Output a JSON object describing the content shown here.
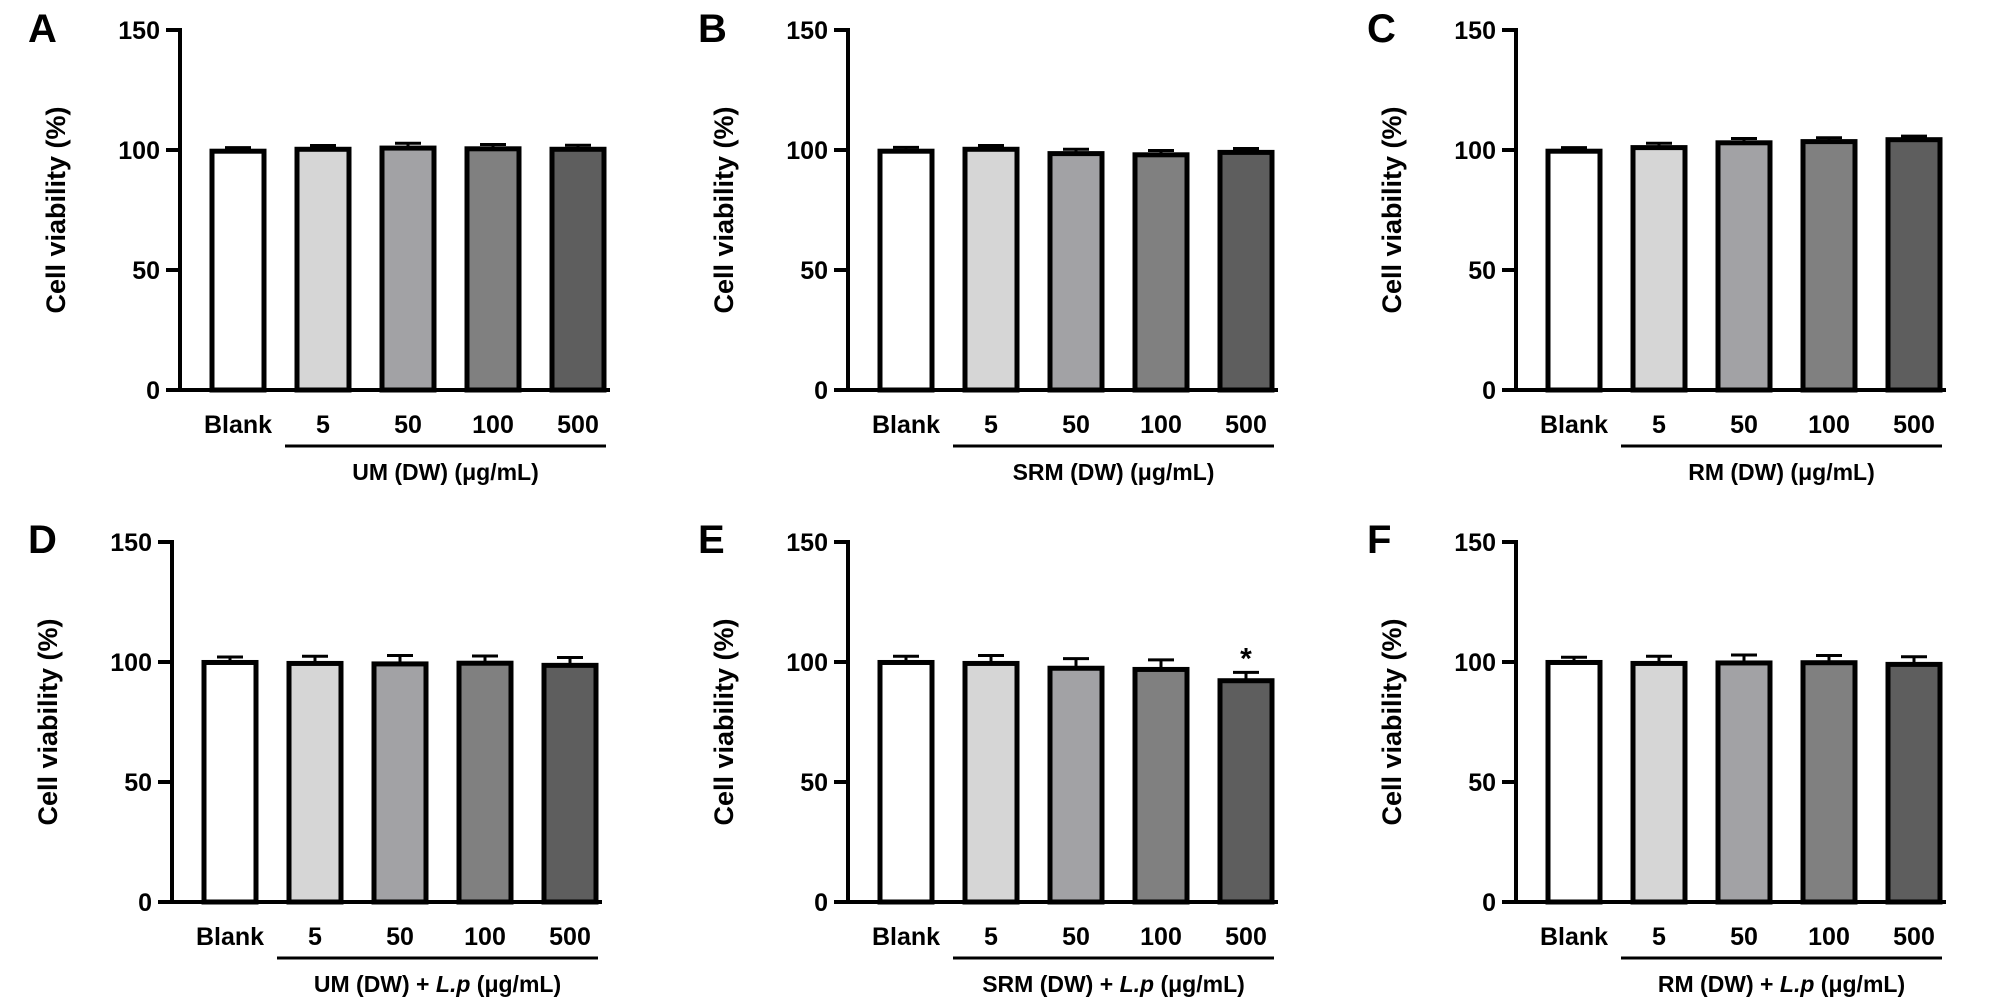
{
  "colors": {
    "axis": "#000000",
    "bar_fills": [
      "#ffffff",
      "#d6d6d6",
      "#a2a2a5",
      "#808080",
      "#5e5e5e"
    ]
  },
  "chart_data": [
    {
      "panel": "A",
      "type": "bar",
      "ylabel": "Cell viability (%)",
      "ylim": [
        0,
        150
      ],
      "yticks": [
        "0",
        "50",
        "100",
        "150"
      ],
      "categories": [
        "Blank",
        "5",
        "50",
        "100",
        "500"
      ],
      "values": [
        99.5,
        100.3,
        100.8,
        100.5,
        100.3
      ],
      "errors": [
        1.5,
        1.6,
        2.0,
        1.8,
        1.7
      ],
      "group_label": {
        "prefix": "UM (DW)",
        "italic": "",
        "suffix": " (μg/mL)"
      },
      "significance": [
        "",
        "",
        "",
        "",
        ""
      ]
    },
    {
      "panel": "B",
      "type": "bar",
      "ylabel": "Cell viability (%)",
      "ylim": [
        0,
        150
      ],
      "yticks": [
        "0",
        "50",
        "100",
        "150"
      ],
      "categories": [
        "Blank",
        "5",
        "50",
        "100",
        "500"
      ],
      "values": [
        99.5,
        100.3,
        98.5,
        98.0,
        99.0
      ],
      "errors": [
        1.6,
        1.6,
        1.8,
        1.8,
        1.6
      ],
      "group_label": {
        "prefix": "SRM (DW)",
        "italic": "",
        "suffix": " (μg/mL)"
      },
      "significance": [
        "",
        "",
        "",
        "",
        ""
      ]
    },
    {
      "panel": "C",
      "type": "bar",
      "ylabel": "Cell viability (%)",
      "ylim": [
        0,
        150
      ],
      "yticks": [
        "0",
        "50",
        "100",
        "150"
      ],
      "categories": [
        "Blank",
        "5",
        "50",
        "100",
        "500"
      ],
      "values": [
        99.5,
        101.0,
        103.0,
        103.5,
        104.3
      ],
      "errors": [
        1.5,
        1.8,
        1.8,
        1.6,
        1.5
      ],
      "group_label": {
        "prefix": "RM (DW)",
        "italic": "",
        "suffix": " (μg/mL)"
      },
      "significance": [
        "",
        "",
        "",
        "",
        ""
      ]
    },
    {
      "panel": "D",
      "type": "bar",
      "ylabel": "Cell viability (%)",
      "ylim": [
        0,
        150
      ],
      "yticks": [
        "0",
        "50",
        "100",
        "150"
      ],
      "categories": [
        "Blank",
        "5",
        "50",
        "100",
        "500"
      ],
      "values": [
        99.8,
        99.4,
        99.2,
        99.5,
        98.6
      ],
      "errors": [
        2.3,
        3.0,
        3.5,
        3.0,
        3.3
      ],
      "group_label": {
        "prefix": "UM (DW) + ",
        "italic": "L.p",
        "suffix": " (μg/mL)"
      },
      "significance": [
        "",
        "",
        "",
        "",
        ""
      ]
    },
    {
      "panel": "E",
      "type": "bar",
      "ylabel": "Cell viability (%)",
      "ylim": [
        0,
        150
      ],
      "yticks": [
        "0",
        "50",
        "100",
        "150"
      ],
      "categories": [
        "Blank",
        "5",
        "50",
        "100",
        "500"
      ],
      "values": [
        99.8,
        99.4,
        97.4,
        96.9,
        92.2
      ],
      "errors": [
        2.6,
        3.3,
        4.0,
        4.0,
        3.5
      ],
      "group_label": {
        "prefix": "SRM (DW) + ",
        "italic": "L.p",
        "suffix": " (μg/mL)"
      },
      "significance": [
        "",
        "",
        "",
        "",
        "*"
      ]
    },
    {
      "panel": "F",
      "type": "bar",
      "ylabel": "Cell viability (%)",
      "ylim": [
        0,
        150
      ],
      "yticks": [
        "0",
        "50",
        "100",
        "150"
      ],
      "categories": [
        "Blank",
        "5",
        "50",
        "100",
        "500"
      ],
      "values": [
        99.8,
        99.4,
        99.6,
        99.7,
        99.0
      ],
      "errors": [
        2.2,
        3.0,
        3.3,
        3.0,
        3.2
      ],
      "group_label": {
        "prefix": "RM (DW) + ",
        "italic": "L.p",
        "suffix": " (μg/mL)"
      },
      "significance": [
        "",
        "",
        "",
        "",
        ""
      ]
    }
  ]
}
